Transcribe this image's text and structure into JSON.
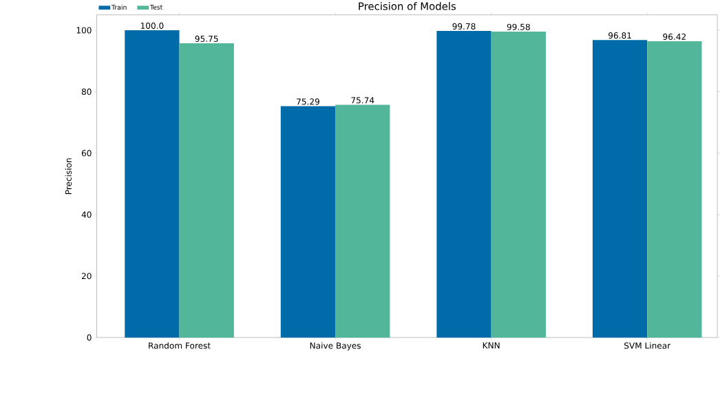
{
  "chart_data": {
    "type": "bar",
    "title": "Precision of Models",
    "ylabel": "Precision",
    "categories": [
      "Random Forest",
      "Naive Bayes",
      "KNN",
      "SVM Linear"
    ],
    "series": [
      {
        "name": "Train",
        "color": "#006ba9",
        "values": [
          100.0,
          75.29,
          99.78,
          96.81
        ],
        "value_labels": [
          "100.0",
          "75.29",
          "99.78",
          "96.81"
        ]
      },
      {
        "name": "Test",
        "color": "#52b79a",
        "values": [
          95.75,
          75.74,
          99.58,
          96.42
        ],
        "value_labels": [
          "95.75",
          "75.74",
          "99.58",
          "96.42"
        ]
      }
    ],
    "ylim": [
      0,
      105
    ],
    "yticks": [
      0,
      20,
      40,
      60,
      80,
      100
    ],
    "legend": "top left",
    "grid": false
  }
}
